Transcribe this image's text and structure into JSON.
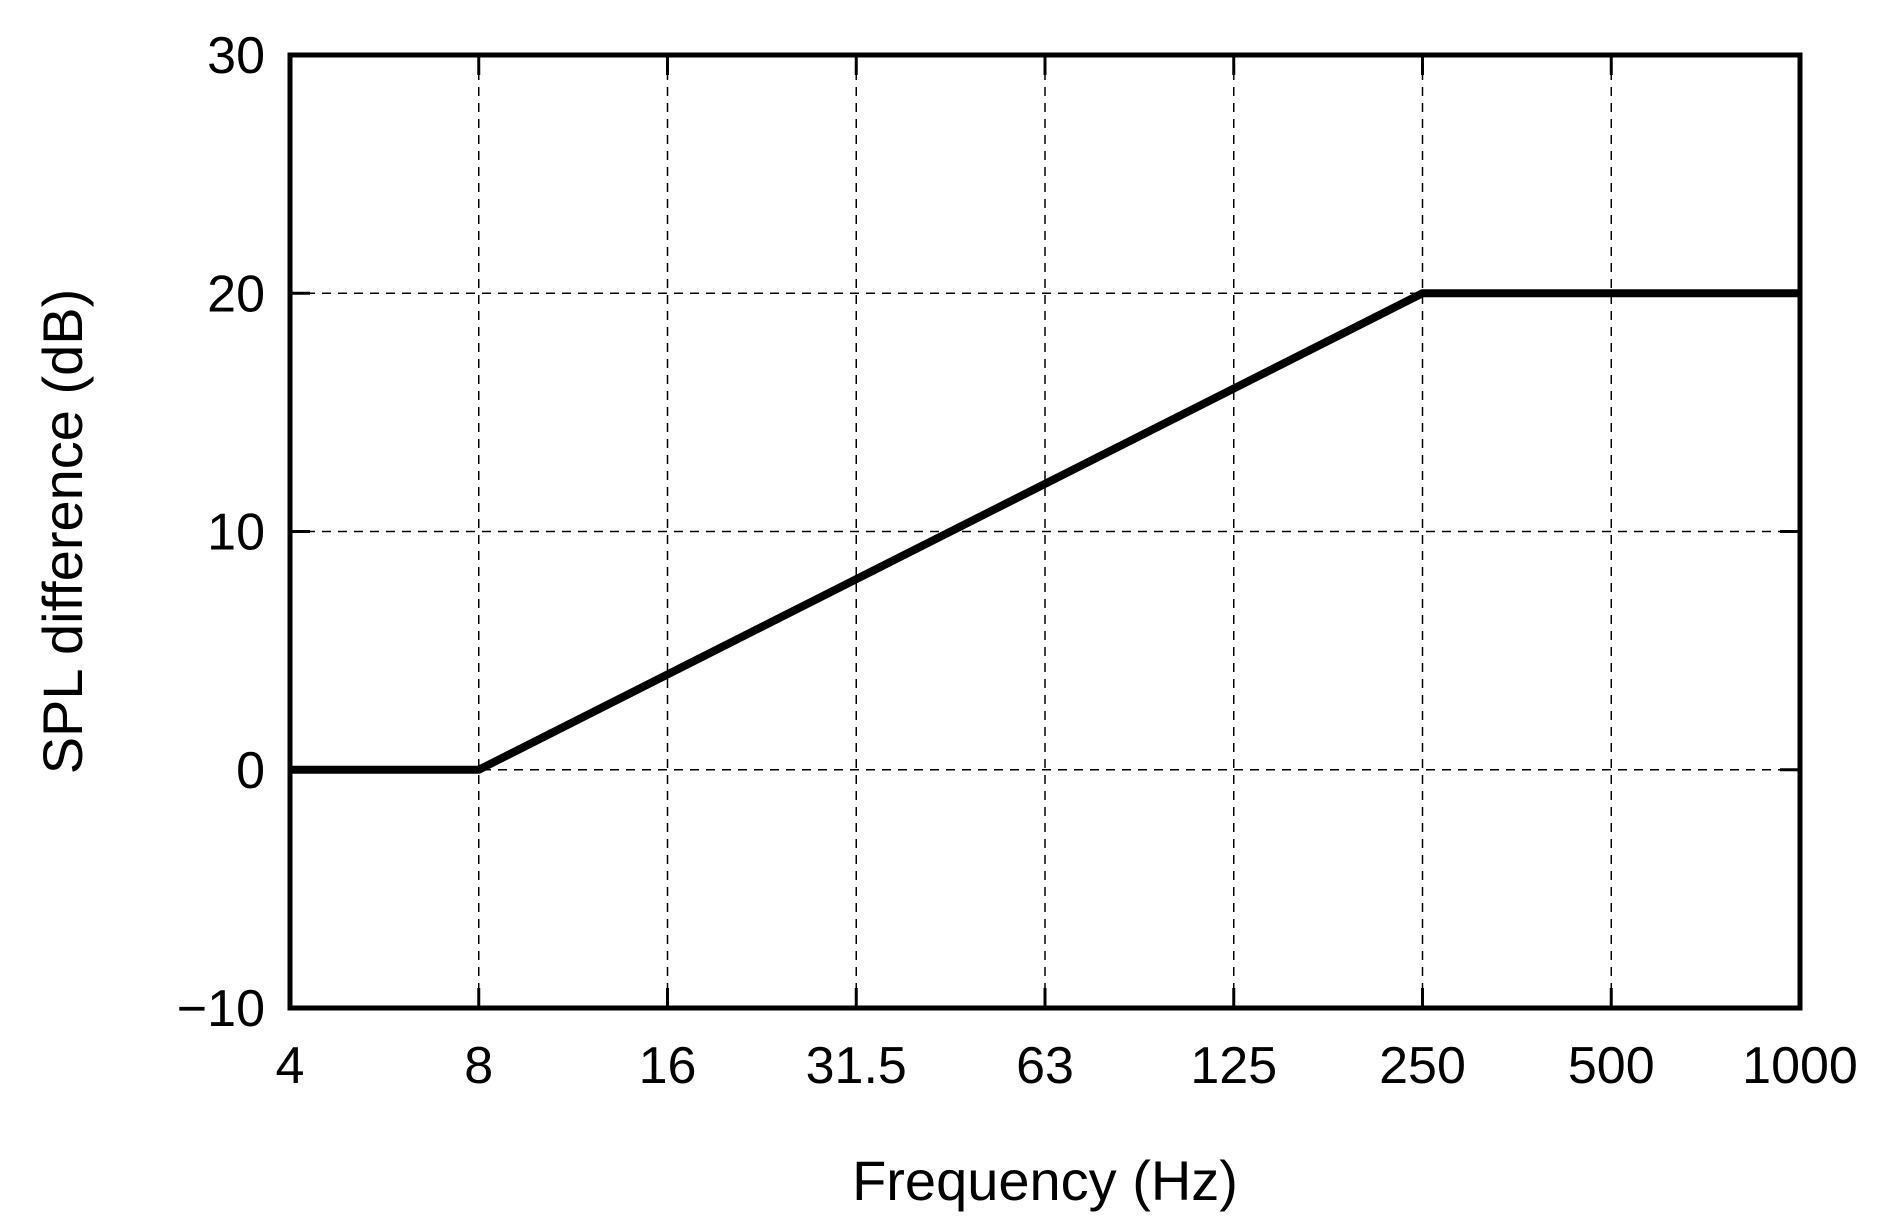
{
  "chart_data": {
    "type": "line",
    "title": "",
    "xlabel": "Frequency (Hz)",
    "ylabel": "SPL difference (dB)",
    "x_scale": "log",
    "x_ticks": [
      "4",
      "8",
      "16",
      "31.5",
      "63",
      "125",
      "250",
      "500",
      "1000"
    ],
    "y_ticks": [
      "30",
      "20",
      "10",
      "0",
      "−10"
    ],
    "ylim": [
      -10,
      30
    ],
    "xlim_octave_index": [
      0,
      8
    ],
    "grid": true,
    "grid_style": "dashed",
    "series": [
      {
        "x": [
          "4",
          "8",
          "250",
          "1000"
        ],
        "y": [
          0,
          0,
          20,
          20
        ]
      }
    ],
    "colors": {
      "line": "#000000",
      "grid": "#000000",
      "axes": "#000000"
    }
  }
}
